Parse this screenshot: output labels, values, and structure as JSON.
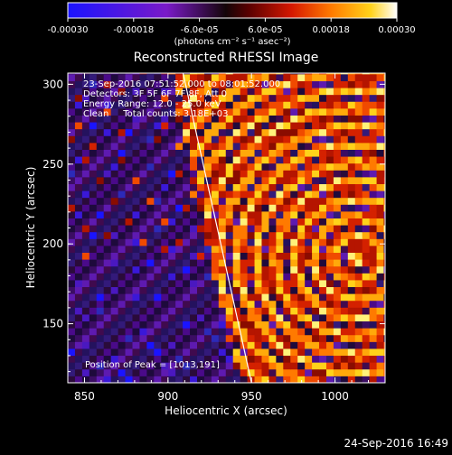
{
  "chart_data": {
    "type": "heatmap",
    "title": "Reconstructed RHESSI Image",
    "xlabel": "Heliocentric X (arcsec)",
    "ylabel": "Heliocentric Y (arcsec)",
    "xlim": [
      840,
      1030
    ],
    "ylim": [
      113,
      307
    ],
    "xticks": [
      850,
      900,
      950,
      1000
    ],
    "yticks": [
      150,
      200,
      250,
      300
    ],
    "colorbar": {
      "range": [
        -0.0003,
        0.0003
      ],
      "tick_values": [
        -0.0003,
        -0.00018,
        -6e-05,
        6e-05,
        0.00018,
        0.0003
      ],
      "tick_labels": [
        "-0.00030",
        "-0.00018",
        "-6.0e-05",
        "6.0e-05",
        "0.00018",
        "0.00030"
      ],
      "units_label": "(photons cm⁻² s⁻¹ asec⁻²)"
    },
    "annotations": [
      "23-Sep-2016 07:51:52.000 to 08:01:52.000",
      "Detectors: 3F 5F 6F 7F 8F, Att 0",
      "Energy Range: 12.0 - 25.0 keV",
      "Clean     Total counts: 3.18E+03"
    ],
    "peak_label": "Position of Peak = [1013,191]",
    "peak_position": [
      1013,
      191
    ],
    "limb_line": [
      [
        909,
        307
      ],
      [
        950,
        113
      ]
    ],
    "timestamp": "24-Sep-2016 16:49"
  }
}
